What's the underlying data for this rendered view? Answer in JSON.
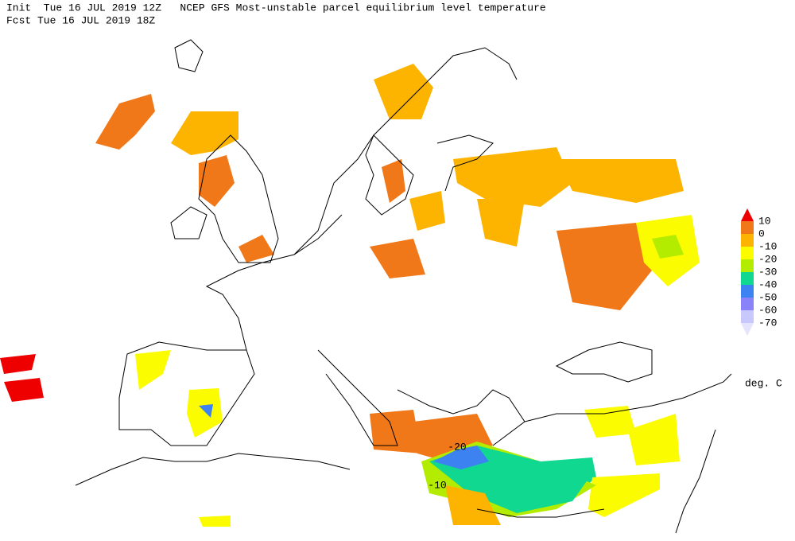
{
  "header": {
    "init": "Init  Tue 16 JUL 2019 12Z   NCEP GFS Most-unstable parcel equilibrium level temperature",
    "fcst": "Fcst Tue 16 JUL 2019 18Z"
  },
  "legend": {
    "ticks": [
      10,
      0,
      -10,
      -20,
      -30,
      -40,
      -50,
      -60,
      -70
    ],
    "colors": [
      "#ee0000",
      "#f07818",
      "#fcb400",
      "#fcfc00",
      "#b4ec00",
      "#10d890",
      "#3c82f0",
      "#8a82f8",
      "#c8c8fc",
      "#e4e4fc"
    ],
    "unit": "deg. C"
  },
  "map": {
    "labels": [
      -20,
      -10
    ]
  }
}
